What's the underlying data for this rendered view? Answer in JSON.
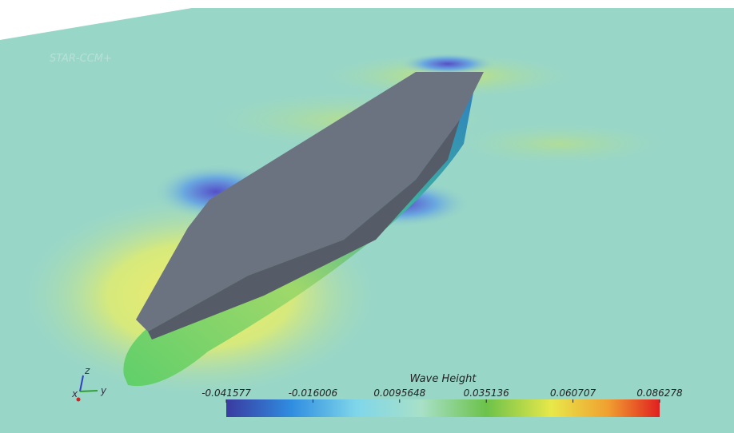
{
  "logo": "STAR-CCM+",
  "colorbar": {
    "title": "Wave Height",
    "ticks": [
      -0.041577,
      -0.016006,
      0.0095648,
      0.035136,
      0.060707,
      0.086278
    ]
  },
  "triad": {
    "z": "z",
    "x": "x",
    "y": "y"
  }
}
